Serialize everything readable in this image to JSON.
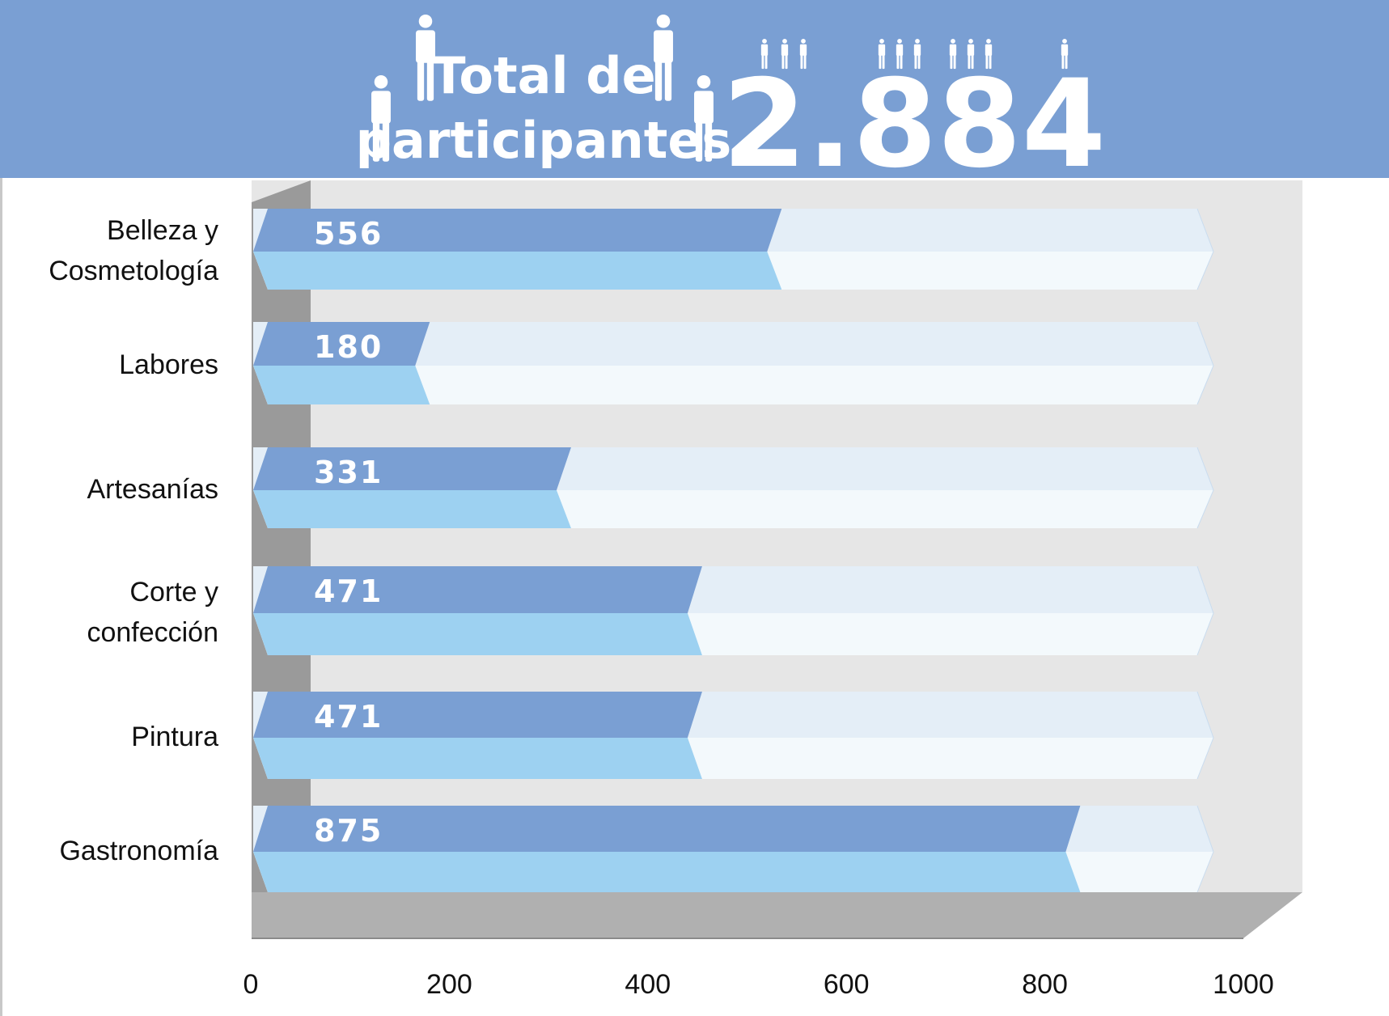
{
  "header": {
    "title_line1": "Total de",
    "title_line2": "participantes",
    "total": "2.884",
    "person_icon": "person-icon",
    "background_color": "#7a9fd3"
  },
  "chart_data": {
    "type": "bar",
    "orientation": "horizontal",
    "style": "3d",
    "categories": [
      "Belleza y Cosmetología",
      "Labores",
      "Artesanías",
      "Corte y confección",
      "Pintura",
      "Gastronomía"
    ],
    "category_lines": [
      [
        "Belleza y",
        "Cosmetología"
      ],
      [
        "Labores"
      ],
      [
        "Artesanías"
      ],
      [
        "Corte y",
        "confección"
      ],
      [
        "Pintura"
      ],
      [
        "Gastronomía"
      ]
    ],
    "values": [
      556,
      180,
      331,
      471,
      471,
      875
    ],
    "value_labels": [
      "556",
      "180",
      "331",
      "471",
      "471",
      "875"
    ],
    "xlim": [
      0,
      1000
    ],
    "xticks": [
      "0",
      "200",
      "400",
      "600",
      "800",
      "1000"
    ],
    "bar_color_top": "#7a9fd3",
    "bar_color_bottom": "#9dd1f1",
    "track_color_top": "#e4eef7",
    "track_color_bottom": "#f3f9fc",
    "wall_color": "#e6e6e6",
    "floor_color": "#b0b0b0",
    "title": "",
    "xlabel": "",
    "ylabel": ""
  }
}
